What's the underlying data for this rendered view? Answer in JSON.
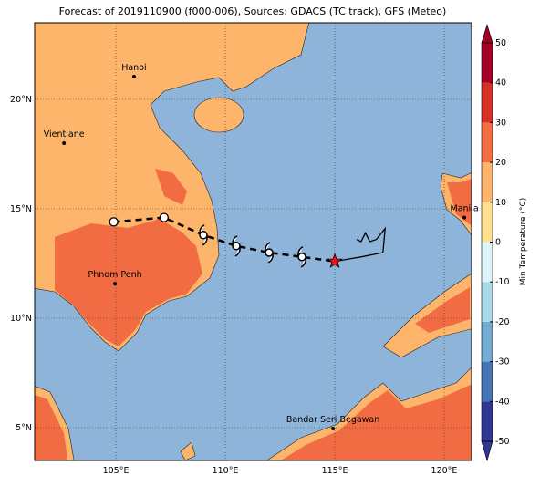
{
  "title": "Forecast of 2019110900 (f000-006), Sources: GDACS (TC track), GFS (Meteo)",
  "map": {
    "lon_range": [
      101.29,
      121.25
    ],
    "lat_range": [
      3.5,
      23.5
    ],
    "xticks": [
      {
        "value": 105,
        "label": "105°E"
      },
      {
        "value": 110,
        "label": "110°E"
      },
      {
        "value": 115,
        "label": "115°E"
      },
      {
        "value": 120,
        "label": "120°E"
      }
    ],
    "yticks": [
      {
        "value": 5,
        "label": "5°N"
      },
      {
        "value": 10,
        "label": "10°N"
      },
      {
        "value": 15,
        "label": "15°N"
      },
      {
        "value": 20,
        "label": "20°N"
      }
    ],
    "cities": [
      {
        "name": "Hanoi",
        "lon": 105.83,
        "lat": 21.04
      },
      {
        "name": "Vientiane",
        "lon": 102.63,
        "lat": 18.0
      },
      {
        "name": "Phnom Penh",
        "lon": 104.96,
        "lat": 11.58
      },
      {
        "name": "Manila",
        "lon": 120.92,
        "lat": 14.6
      },
      {
        "name": "Bandar Seri Begawan",
        "lon": 114.92,
        "lat": 4.96
      }
    ],
    "track": {
      "lon": [
        104.9,
        107.2,
        109.0,
        110.5,
        112.0,
        113.5,
        115.0
      ],
      "lat": [
        14.4,
        14.6,
        13.8,
        13.3,
        13.0,
        12.8,
        12.6
      ],
      "symbol": [
        "circle",
        "circle",
        "cyclone",
        "cyclone",
        "cyclone",
        "cyclone",
        "star"
      ]
    },
    "analysis": {
      "lon": [
        115.0,
        116.2,
        117.2,
        117.3,
        116.9,
        116.6,
        116.4,
        116.2,
        116.0
      ],
      "lat": [
        12.6,
        12.8,
        13.0,
        14.1,
        13.6,
        13.5,
        13.9,
        13.5,
        13.6
      ]
    }
  },
  "colorbar": {
    "label": "Min Temperature (°C)",
    "ticks": [
      -50,
      -40,
      -30,
      -20,
      -10,
      0,
      10,
      20,
      30,
      40,
      50
    ],
    "colors": [
      "#313695",
      "#4575b4",
      "#74add1",
      "#abd9e9",
      "#e0f3f8",
      "#fee090",
      "#fdb56b",
      "#f46d43",
      "#d73027",
      "#a50026"
    ]
  }
}
